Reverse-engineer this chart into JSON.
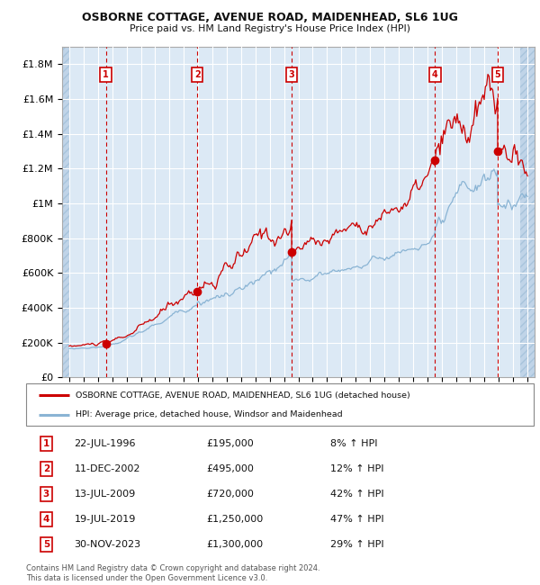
{
  "title": "OSBORNE COTTAGE, AVENUE ROAD, MAIDENHEAD, SL6 1UG",
  "subtitle": "Price paid vs. HM Land Registry's House Price Index (HPI)",
  "ylim": [
    0,
    1900000
  ],
  "yticks": [
    0,
    200000,
    400000,
    600000,
    800000,
    1000000,
    1200000,
    1400000,
    1600000,
    1800000
  ],
  "ytick_labels": [
    "£0",
    "£200K",
    "£400K",
    "£600K",
    "£800K",
    "£1M",
    "£1.2M",
    "£1.4M",
    "£1.6M",
    "£1.8M"
  ],
  "bg_color": "#dce9f5",
  "hatch_color": "#c0d4e8",
  "grid_color": "#ffffff",
  "red_line_color": "#cc0000",
  "blue_line_color": "#8ab4d4",
  "sale_marker_color": "#cc0000",
  "vline_color": "#cc0000",
  "label_box_color": "#cc0000",
  "sale_dates_x": [
    1996.55,
    2002.94,
    2009.53,
    2019.55,
    2023.92
  ],
  "sale_prices": [
    195000,
    495000,
    720000,
    1250000,
    1300000
  ],
  "sale_labels": [
    "1",
    "2",
    "3",
    "4",
    "5"
  ],
  "xlim": [
    1993.5,
    2026.5
  ],
  "hatch_left_end": 1994.0,
  "hatch_right_start": 2025.5,
  "xtick_years": [
    1994,
    1995,
    1996,
    1997,
    1998,
    1999,
    2000,
    2001,
    2002,
    2003,
    2004,
    2005,
    2006,
    2007,
    2008,
    2009,
    2010,
    2011,
    2012,
    2013,
    2014,
    2015,
    2016,
    2017,
    2018,
    2019,
    2020,
    2021,
    2022,
    2023,
    2024,
    2025,
    2026
  ],
  "legend_entries": [
    "OSBORNE COTTAGE, AVENUE ROAD, MAIDENHEAD, SL6 1UG (detached house)",
    "HPI: Average price, detached house, Windsor and Maidenhead"
  ],
  "table_rows": [
    [
      "1",
      "22-JUL-1996",
      "£195,000",
      "8% ↑ HPI"
    ],
    [
      "2",
      "11-DEC-2002",
      "£495,000",
      "12% ↑ HPI"
    ],
    [
      "3",
      "13-JUL-2009",
      "£720,000",
      "42% ↑ HPI"
    ],
    [
      "4",
      "19-JUL-2019",
      "£1,250,000",
      "47% ↑ HPI"
    ],
    [
      "5",
      "30-NOV-2023",
      "£1,300,000",
      "29% ↑ HPI"
    ]
  ],
  "footnote": "Contains HM Land Registry data © Crown copyright and database right 2024.\nThis data is licensed under the Open Government Licence v3.0."
}
